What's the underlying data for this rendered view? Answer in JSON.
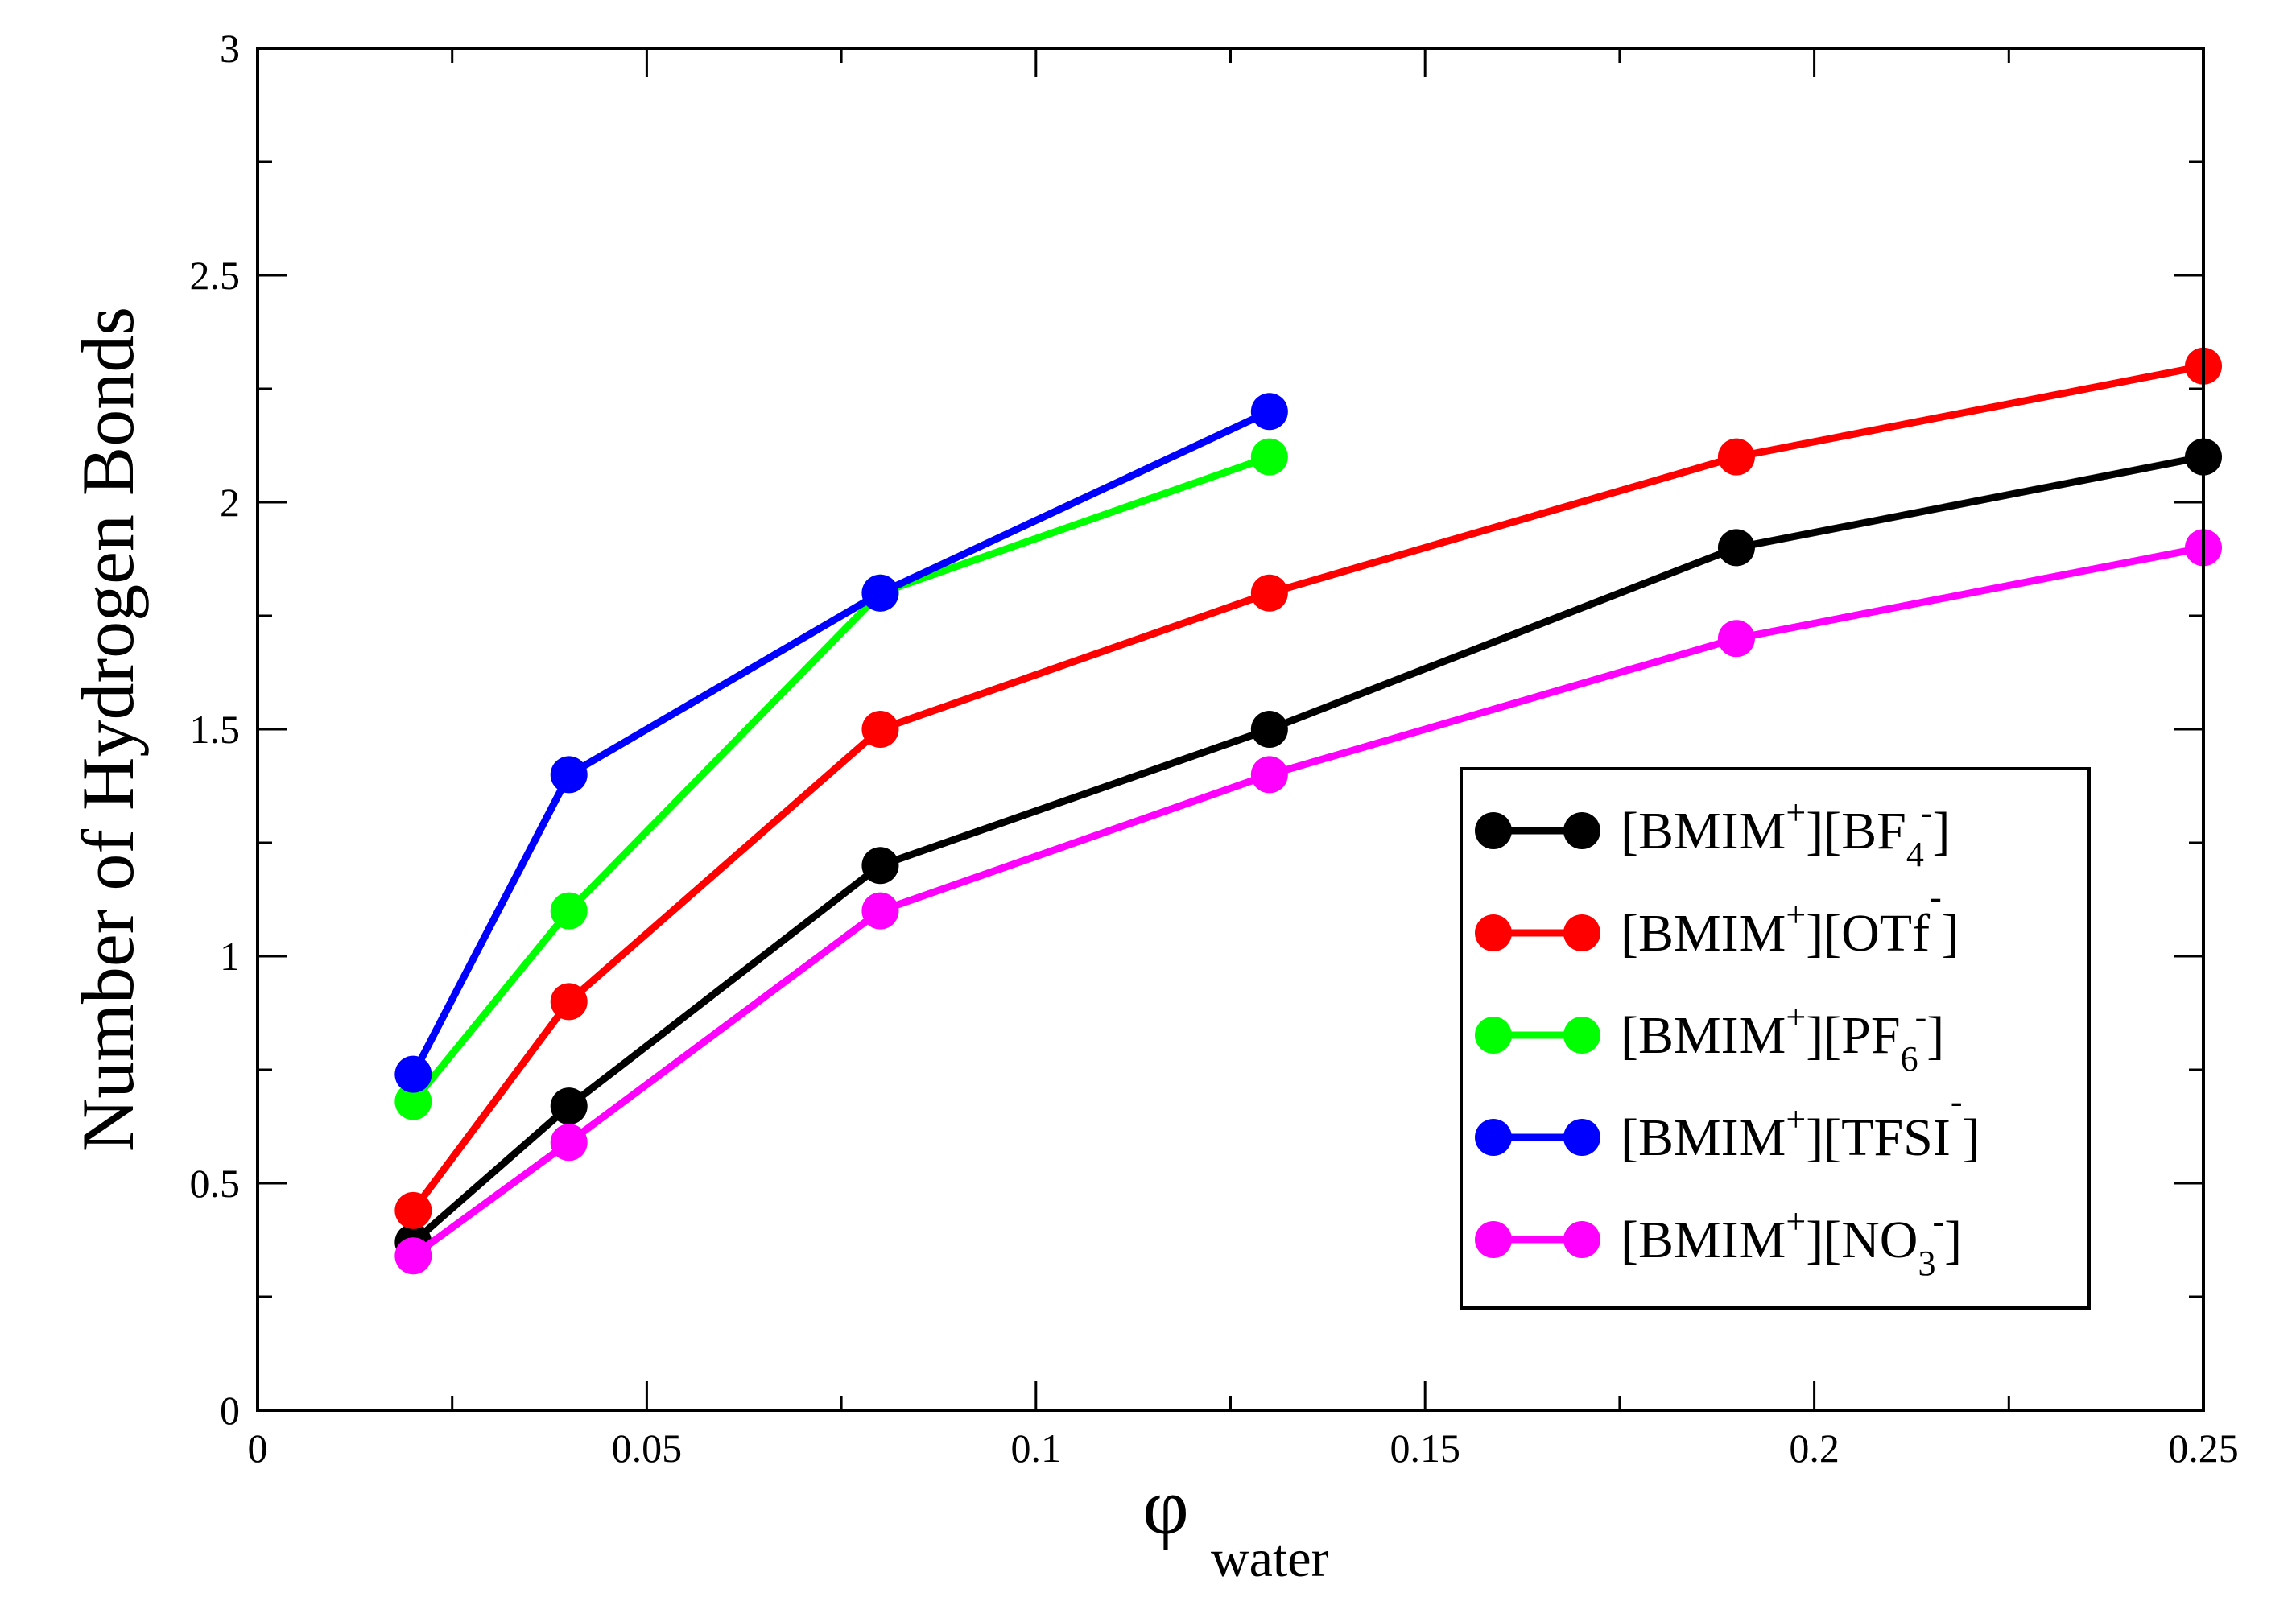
{
  "chart_data": {
    "type": "line",
    "title": "",
    "xlabel": "φ",
    "xlabel_sub": "water",
    "ylabel": "Number of Hydrogen Bonds",
    "xlim": [
      0,
      0.25
    ],
    "ylim": [
      0,
      3
    ],
    "x_ticks": [
      "0",
      "0.05",
      "0.1",
      "0.15",
      "0.2",
      "0.25"
    ],
    "y_ticks": [
      "0",
      "0.5",
      "1",
      "1.5",
      "2",
      "2.5",
      "3"
    ],
    "grid": false,
    "legend_position": "right",
    "series": [
      {
        "name": "[BMIM+][BF4-]",
        "label_parts": {
          "a": "[BMIM",
          "a_sup": "+",
          "b": "][BF",
          "b_sub": "4",
          "b_sup": "-",
          "c": "]"
        },
        "color": "#000000",
        "x": [
          0.02,
          0.04,
          0.08,
          0.13,
          0.19,
          0.25
        ],
        "y": [
          0.37,
          0.67,
          1.2,
          1.5,
          1.9,
          2.1
        ]
      },
      {
        "name": "[BMIM+][OTf-]",
        "label_parts": {
          "a": "[BMIM",
          "a_sup": "+",
          "b": "][OTf",
          "b_sub": "",
          "b_sup": "-",
          "c": "]"
        },
        "color": "#ff0000",
        "x": [
          0.02,
          0.04,
          0.08,
          0.13,
          0.19,
          0.25
        ],
        "y": [
          0.44,
          0.9,
          1.5,
          1.8,
          2.1,
          2.3
        ]
      },
      {
        "name": "[BMIM+][PF6-]",
        "label_parts": {
          "a": "[BMIM",
          "a_sup": "+",
          "b": "][PF",
          "b_sub": "6",
          "b_sup": "-",
          "c": "]"
        },
        "color": "#00ff00",
        "x": [
          0.02,
          0.04,
          0.08,
          0.13
        ],
        "y": [
          0.68,
          1.1,
          1.8,
          2.1
        ]
      },
      {
        "name": "[BMIM+][TFSI-]",
        "label_parts": {
          "a": "[BMIM",
          "a_sup": "+",
          "b": "][TFSI",
          "b_sub": "",
          "b_sup": "-",
          "c": "]"
        },
        "color": "#0000ff",
        "x": [
          0.02,
          0.04,
          0.08,
          0.13
        ],
        "y": [
          0.74,
          1.4,
          1.8,
          2.2
        ]
      },
      {
        "name": "[BMIM+][NO3-]",
        "label_parts": {
          "a": "[BMIM",
          "a_sup": "+",
          "b": "][NO",
          "b_sub": "3",
          "b_sup": "-",
          "c": "]"
        },
        "color": "#ff00ff",
        "x": [
          0.02,
          0.04,
          0.08,
          0.13,
          0.19,
          0.25
        ],
        "y": [
          0.34,
          0.59,
          1.1,
          1.4,
          1.7,
          1.9
        ]
      }
    ]
  }
}
